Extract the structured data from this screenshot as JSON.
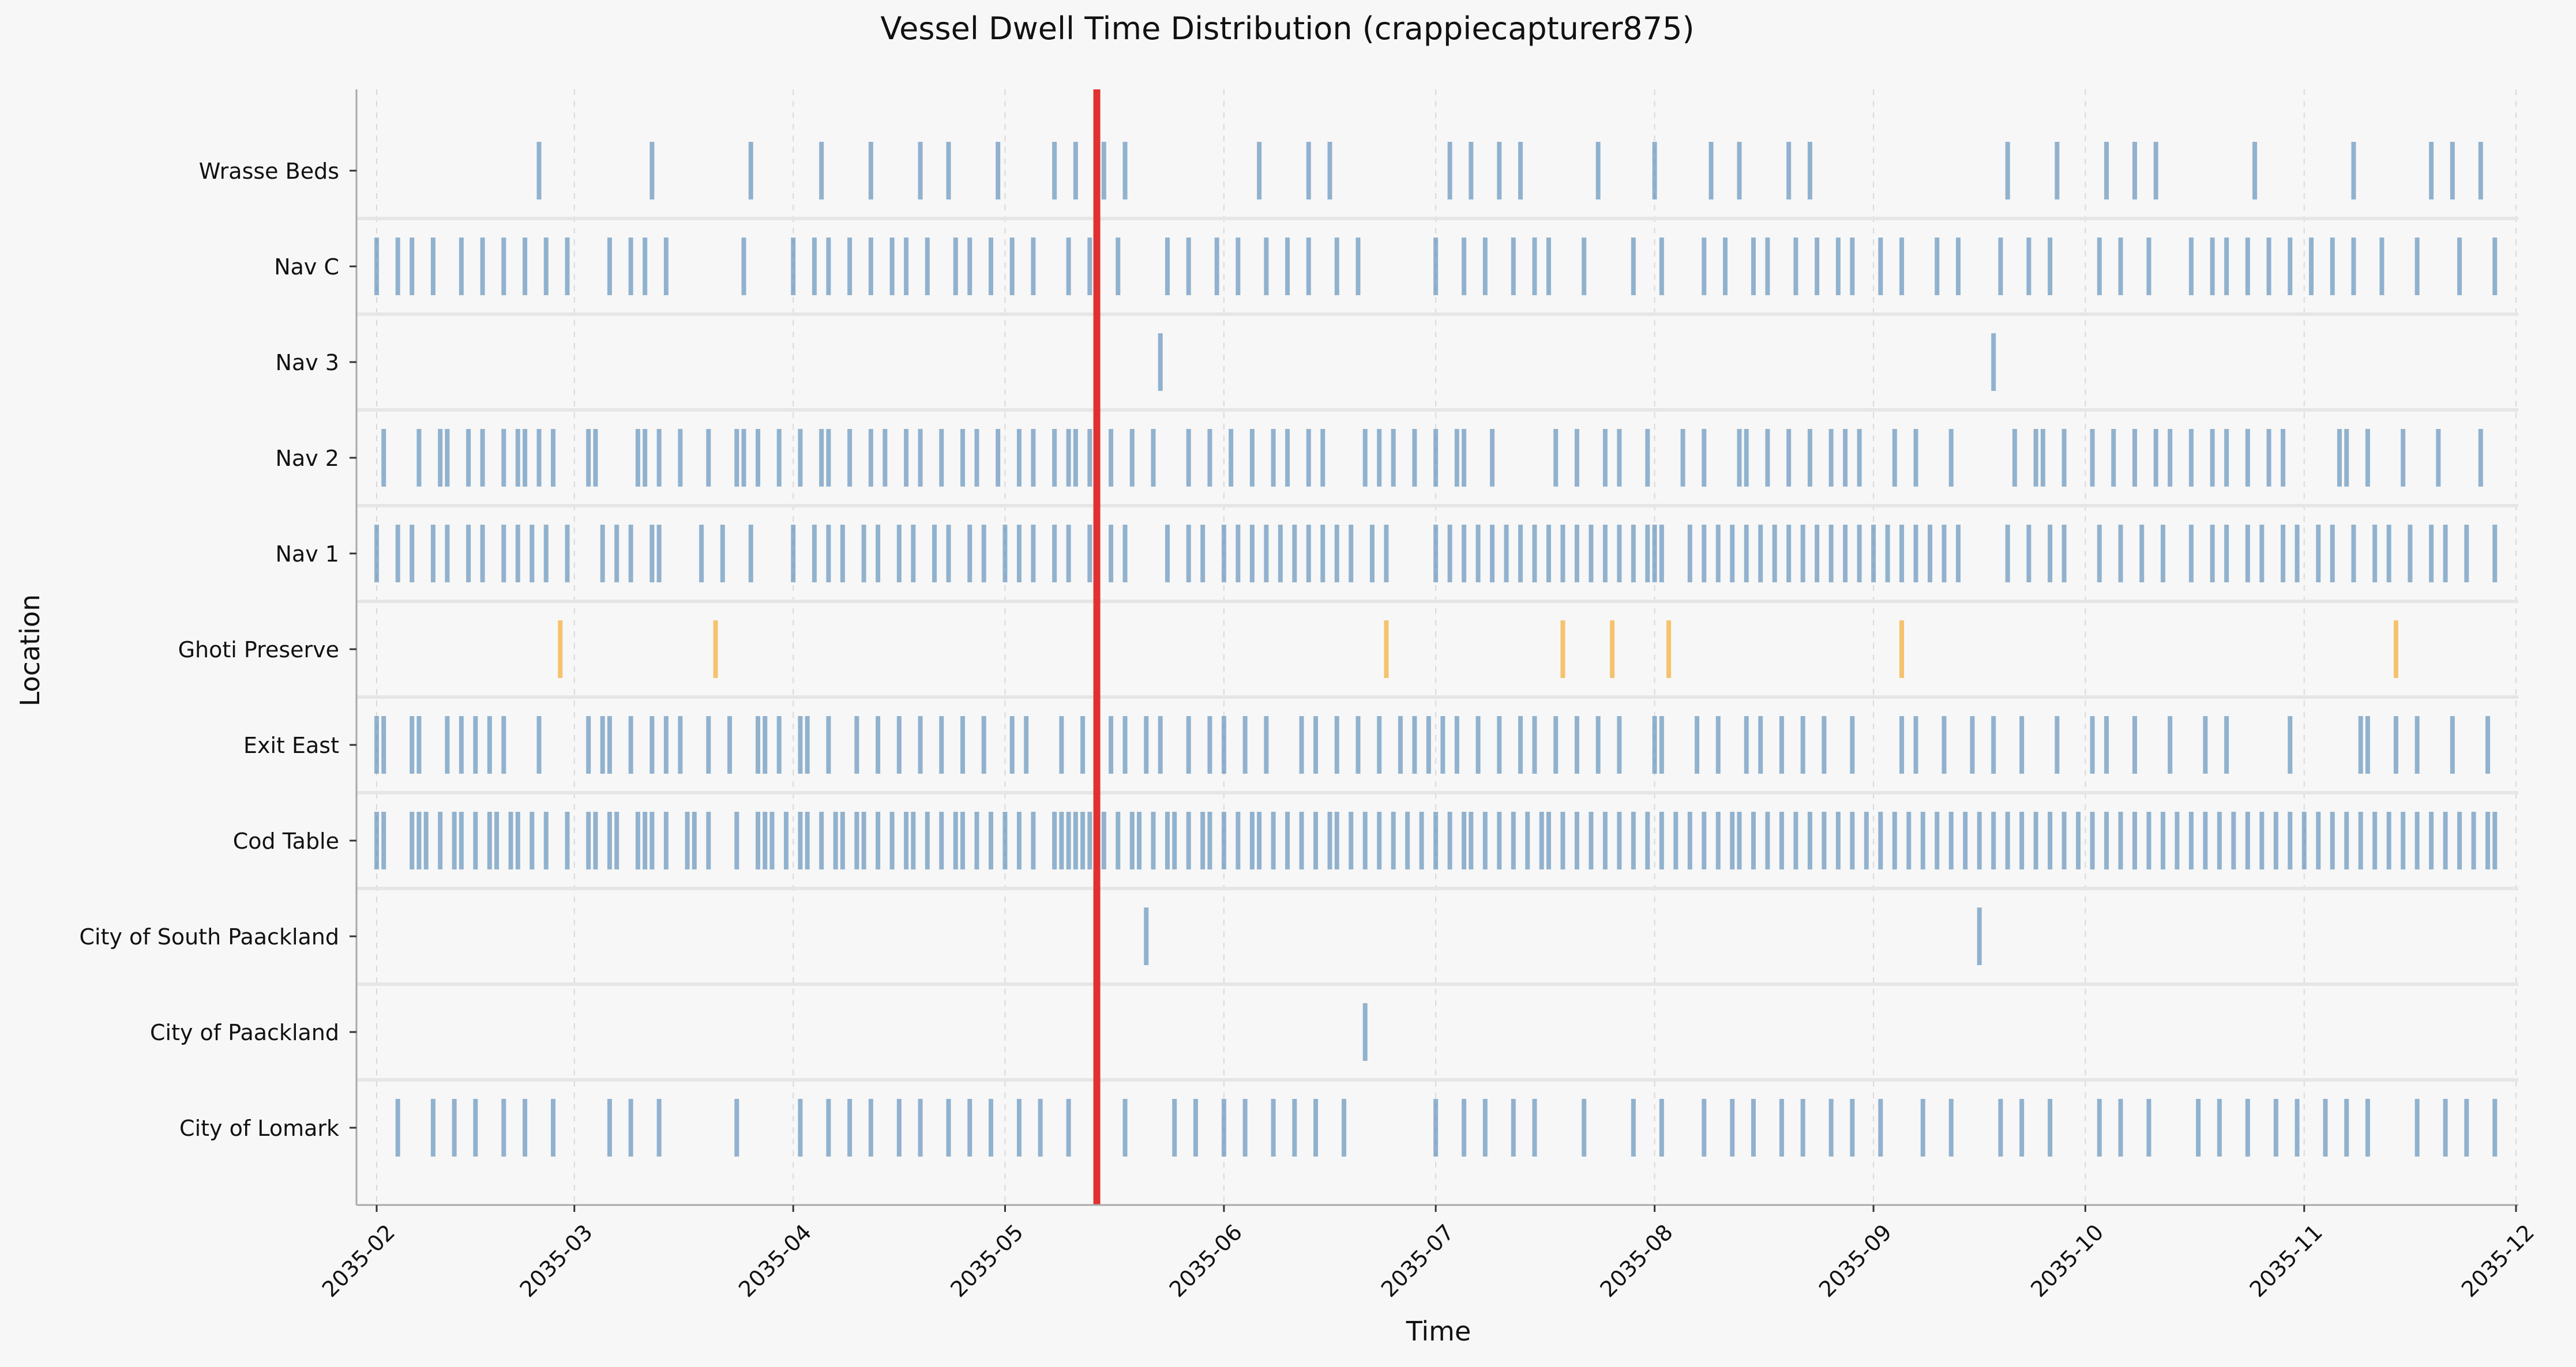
{
  "chart_data": {
    "type": "event-strip",
    "title": "Vessel Dwell Time Distribution (crappiecapturer875)",
    "xlabel": "Time",
    "ylabel": "Location",
    "xlim": [
      "2035-02-01",
      "2035-12-01"
    ],
    "x_tick_labels": [
      "2035-02",
      "2035-03",
      "2035-04",
      "2035-05",
      "2035-06",
      "2035-07",
      "2035-08",
      "2035-09",
      "2035-10",
      "2035-11",
      "2035-12"
    ],
    "x_ticks": [
      "2035-02-01",
      "2035-03-01",
      "2035-04-01",
      "2035-05-01",
      "2035-06-01",
      "2035-07-01",
      "2035-08-01",
      "2035-09-01",
      "2035-10-01",
      "2035-11-01",
      "2035-12-01"
    ],
    "categories": [
      "Wrasse Beds",
      "Nav C",
      "Nav 3",
      "Nav 2",
      "Nav 1",
      "Ghoti Preserve",
      "Exit East",
      "Cod Table",
      "City of South Paackland",
      "City of Paackland",
      "City of Lomark"
    ],
    "grid": "vertical dashed",
    "marker_line": {
      "date": "2035-05-14",
      "color": "#e03131"
    },
    "colors": {
      "default": "#5b8db8",
      "highlight": "#f5a623",
      "marker": "#e03131"
    },
    "series": [
      {
        "category": "Wrasse Beds",
        "color": "#5b8db8",
        "events": [
          "2035-02-24",
          "2035-03-12",
          "2035-03-26",
          "2035-04-05",
          "2035-04-12",
          "2035-04-19",
          "2035-04-23",
          "2035-04-30",
          "2035-05-08",
          "2035-05-11",
          "2035-05-15",
          "2035-05-18",
          "2035-06-06",
          "2035-06-13",
          "2035-06-16",
          "2035-07-03",
          "2035-07-06",
          "2035-07-10",
          "2035-07-13",
          "2035-07-24",
          "2035-08-01",
          "2035-08-09",
          "2035-08-13",
          "2035-08-20",
          "2035-08-23",
          "2035-09-20",
          "2035-09-27",
          "2035-10-04",
          "2035-10-08",
          "2035-10-11",
          "2035-10-25",
          "2035-11-08",
          "2035-11-19",
          "2035-11-22",
          "2035-11-26"
        ]
      },
      {
        "category": "Nav C",
        "color": "#5b8db8",
        "events": [
          "2035-02-01",
          "2035-02-04",
          "2035-02-06",
          "2035-02-09",
          "2035-02-13",
          "2035-02-16",
          "2035-02-19",
          "2035-02-22",
          "2035-02-25",
          "2035-02-28",
          "2035-03-06",
          "2035-03-09",
          "2035-03-11",
          "2035-03-14",
          "2035-03-25",
          "2035-04-01",
          "2035-04-04",
          "2035-04-06",
          "2035-04-09",
          "2035-04-12",
          "2035-04-15",
          "2035-04-17",
          "2035-04-20",
          "2035-04-24",
          "2035-04-26",
          "2035-04-29",
          "2035-05-02",
          "2035-05-05",
          "2035-05-10",
          "2035-05-13",
          "2035-05-17",
          "2035-05-24",
          "2035-05-27",
          "2035-05-31",
          "2035-06-03",
          "2035-06-07",
          "2035-06-10",
          "2035-06-13",
          "2035-06-17",
          "2035-06-20",
          "2035-07-01",
          "2035-07-05",
          "2035-07-08",
          "2035-07-12",
          "2035-07-15",
          "2035-07-17",
          "2035-07-22",
          "2035-07-29",
          "2035-08-02",
          "2035-08-08",
          "2035-08-11",
          "2035-08-15",
          "2035-08-17",
          "2035-08-21",
          "2035-08-24",
          "2035-08-27",
          "2035-08-29",
          "2035-09-02",
          "2035-09-05",
          "2035-09-10",
          "2035-09-13",
          "2035-09-19",
          "2035-09-23",
          "2035-09-26",
          "2035-10-03",
          "2035-10-06",
          "2035-10-10",
          "2035-10-16",
          "2035-10-19",
          "2035-10-21",
          "2035-10-24",
          "2035-10-27",
          "2035-10-30",
          "2035-11-02",
          "2035-11-05",
          "2035-11-08",
          "2035-11-12",
          "2035-11-17",
          "2035-11-23",
          "2035-11-28"
        ]
      },
      {
        "category": "Nav 3",
        "color": "#5b8db8",
        "events": [
          "2035-05-23",
          "2035-09-18"
        ]
      },
      {
        "category": "Nav 2",
        "color": "#5b8db8",
        "events": [
          "2035-02-02",
          "2035-02-07",
          "2035-02-10",
          "2035-02-11",
          "2035-02-14",
          "2035-02-16",
          "2035-02-19",
          "2035-02-21",
          "2035-02-22",
          "2035-02-24",
          "2035-02-26",
          "2035-03-03",
          "2035-03-04",
          "2035-03-10",
          "2035-03-11",
          "2035-03-13",
          "2035-03-16",
          "2035-03-20",
          "2035-03-24",
          "2035-03-25",
          "2035-03-27",
          "2035-03-30",
          "2035-04-02",
          "2035-04-05",
          "2035-04-06",
          "2035-04-09",
          "2035-04-12",
          "2035-04-14",
          "2035-04-17",
          "2035-04-19",
          "2035-04-22",
          "2035-04-25",
          "2035-04-27",
          "2035-04-30",
          "2035-05-03",
          "2035-05-05",
          "2035-05-08",
          "2035-05-10",
          "2035-05-11",
          "2035-05-13",
          "2035-05-16",
          "2035-05-19",
          "2035-05-22",
          "2035-05-27",
          "2035-05-30",
          "2035-06-02",
          "2035-06-05",
          "2035-06-08",
          "2035-06-10",
          "2035-06-13",
          "2035-06-15",
          "2035-06-21",
          "2035-06-23",
          "2035-06-25",
          "2035-06-28",
          "2035-07-01",
          "2035-07-04",
          "2035-07-05",
          "2035-07-09",
          "2035-07-18",
          "2035-07-21",
          "2035-07-25",
          "2035-07-27",
          "2035-07-31",
          "2035-08-05",
          "2035-08-08",
          "2035-08-13",
          "2035-08-14",
          "2035-08-17",
          "2035-08-20",
          "2035-08-23",
          "2035-08-26",
          "2035-08-28",
          "2035-08-30",
          "2035-09-04",
          "2035-09-07",
          "2035-09-12",
          "2035-09-21",
          "2035-09-24",
          "2035-09-25",
          "2035-09-28",
          "2035-10-02",
          "2035-10-05",
          "2035-10-08",
          "2035-10-11",
          "2035-10-13",
          "2035-10-16",
          "2035-10-19",
          "2035-10-21",
          "2035-10-24",
          "2035-10-27",
          "2035-10-29",
          "2035-11-06",
          "2035-11-07",
          "2035-11-10",
          "2035-11-15",
          "2035-11-20",
          "2035-11-26"
        ]
      },
      {
        "category": "Nav 1",
        "color": "#5b8db8",
        "events": [
          "2035-02-01",
          "2035-02-04",
          "2035-02-06",
          "2035-02-09",
          "2035-02-11",
          "2035-02-14",
          "2035-02-16",
          "2035-02-19",
          "2035-02-21",
          "2035-02-23",
          "2035-02-25",
          "2035-02-28",
          "2035-03-05",
          "2035-03-07",
          "2035-03-09",
          "2035-03-12",
          "2035-03-13",
          "2035-03-19",
          "2035-03-22",
          "2035-03-26",
          "2035-04-01",
          "2035-04-04",
          "2035-04-06",
          "2035-04-08",
          "2035-04-11",
          "2035-04-13",
          "2035-04-16",
          "2035-04-18",
          "2035-04-21",
          "2035-04-23",
          "2035-04-26",
          "2035-04-28",
          "2035-05-01",
          "2035-05-03",
          "2035-05-05",
          "2035-05-08",
          "2035-05-10",
          "2035-05-13",
          "2035-05-16",
          "2035-05-18",
          "2035-05-24",
          "2035-05-27",
          "2035-05-29",
          "2035-06-01",
          "2035-06-03",
          "2035-06-05",
          "2035-06-07",
          "2035-06-09",
          "2035-06-11",
          "2035-06-13",
          "2035-06-15",
          "2035-06-17",
          "2035-06-19",
          "2035-06-22",
          "2035-06-24",
          "2035-07-01",
          "2035-07-03",
          "2035-07-05",
          "2035-07-07",
          "2035-07-09",
          "2035-07-11",
          "2035-07-13",
          "2035-07-15",
          "2035-07-17",
          "2035-07-19",
          "2035-07-21",
          "2035-07-23",
          "2035-07-25",
          "2035-07-27",
          "2035-07-29",
          "2035-07-31",
          "2035-08-01",
          "2035-08-02",
          "2035-08-06",
          "2035-08-08",
          "2035-08-10",
          "2035-08-12",
          "2035-08-14",
          "2035-08-16",
          "2035-08-18",
          "2035-08-20",
          "2035-08-22",
          "2035-08-24",
          "2035-08-26",
          "2035-08-28",
          "2035-08-30",
          "2035-09-01",
          "2035-09-03",
          "2035-09-05",
          "2035-09-07",
          "2035-09-09",
          "2035-09-11",
          "2035-09-13",
          "2035-09-20",
          "2035-09-23",
          "2035-09-26",
          "2035-09-28",
          "2035-10-03",
          "2035-10-06",
          "2035-10-09",
          "2035-10-12",
          "2035-10-16",
          "2035-10-19",
          "2035-10-21",
          "2035-10-24",
          "2035-10-26",
          "2035-10-29",
          "2035-10-31",
          "2035-11-03",
          "2035-11-05",
          "2035-11-08",
          "2035-11-11",
          "2035-11-13",
          "2035-11-16",
          "2035-11-19",
          "2035-11-21",
          "2035-11-24",
          "2035-11-28"
        ]
      },
      {
        "category": "Ghoti Preserve",
        "color": "#f5a623",
        "events": [
          "2035-02-27",
          "2035-03-21",
          "2035-06-24",
          "2035-07-19",
          "2035-07-26",
          "2035-08-03",
          "2035-09-05",
          "2035-11-14"
        ]
      },
      {
        "category": "Exit East",
        "color": "#5b8db8",
        "events": [
          "2035-02-01",
          "2035-02-02",
          "2035-02-06",
          "2035-02-07",
          "2035-02-11",
          "2035-02-13",
          "2035-02-15",
          "2035-02-17",
          "2035-02-19",
          "2035-02-24",
          "2035-03-03",
          "2035-03-05",
          "2035-03-06",
          "2035-03-09",
          "2035-03-12",
          "2035-03-14",
          "2035-03-16",
          "2035-03-20",
          "2035-03-23",
          "2035-03-27",
          "2035-03-28",
          "2035-03-30",
          "2035-04-02",
          "2035-04-03",
          "2035-04-06",
          "2035-04-10",
          "2035-04-13",
          "2035-04-16",
          "2035-04-19",
          "2035-04-22",
          "2035-04-25",
          "2035-04-28",
          "2035-05-02",
          "2035-05-04",
          "2035-05-09",
          "2035-05-12",
          "2035-05-16",
          "2035-05-18",
          "2035-05-21",
          "2035-05-23",
          "2035-05-27",
          "2035-05-30",
          "2035-06-01",
          "2035-06-04",
          "2035-06-07",
          "2035-06-12",
          "2035-06-14",
          "2035-06-17",
          "2035-06-20",
          "2035-06-23",
          "2035-06-26",
          "2035-06-28",
          "2035-06-30",
          "2035-07-02",
          "2035-07-04",
          "2035-07-07",
          "2035-07-10",
          "2035-07-13",
          "2035-07-15",
          "2035-07-18",
          "2035-07-21",
          "2035-07-24",
          "2035-07-27",
          "2035-08-01",
          "2035-08-02",
          "2035-08-07",
          "2035-08-10",
          "2035-08-14",
          "2035-08-16",
          "2035-08-19",
          "2035-08-22",
          "2035-08-25",
          "2035-08-29",
          "2035-09-05",
          "2035-09-07",
          "2035-09-11",
          "2035-09-15",
          "2035-09-18",
          "2035-09-22",
          "2035-09-27",
          "2035-10-02",
          "2035-10-04",
          "2035-10-08",
          "2035-10-13",
          "2035-10-18",
          "2035-10-21",
          "2035-10-30",
          "2035-11-09",
          "2035-11-10",
          "2035-11-14",
          "2035-11-17",
          "2035-11-22",
          "2035-11-27"
        ]
      },
      {
        "category": "Cod Table",
        "color": "#5b8db8",
        "events": [
          "2035-02-01",
          "2035-02-02",
          "2035-02-06",
          "2035-02-07",
          "2035-02-08",
          "2035-02-10",
          "2035-02-12",
          "2035-02-13",
          "2035-02-15",
          "2035-02-17",
          "2035-02-18",
          "2035-02-20",
          "2035-02-21",
          "2035-02-23",
          "2035-02-25",
          "2035-02-28",
          "2035-03-03",
          "2035-03-04",
          "2035-03-06",
          "2035-03-07",
          "2035-03-10",
          "2035-03-11",
          "2035-03-12",
          "2035-03-14",
          "2035-03-17",
          "2035-03-18",
          "2035-03-20",
          "2035-03-24",
          "2035-03-27",
          "2035-03-28",
          "2035-03-29",
          "2035-03-31",
          "2035-04-02",
          "2035-04-03",
          "2035-04-05",
          "2035-04-07",
          "2035-04-08",
          "2035-04-10",
          "2035-04-11",
          "2035-04-13",
          "2035-04-15",
          "2035-04-17",
          "2035-04-18",
          "2035-04-20",
          "2035-04-22",
          "2035-04-24",
          "2035-04-25",
          "2035-04-27",
          "2035-04-29",
          "2035-05-01",
          "2035-05-03",
          "2035-05-05",
          "2035-05-08",
          "2035-05-09",
          "2035-05-10",
          "2035-05-11",
          "2035-05-12",
          "2035-05-13",
          "2035-05-15",
          "2035-05-17",
          "2035-05-19",
          "2035-05-20",
          "2035-05-22",
          "2035-05-24",
          "2035-05-25",
          "2035-05-27",
          "2035-05-29",
          "2035-05-30",
          "2035-06-01",
          "2035-06-03",
          "2035-06-05",
          "2035-06-06",
          "2035-06-08",
          "2035-06-10",
          "2035-06-12",
          "2035-06-14",
          "2035-06-16",
          "2035-06-17",
          "2035-06-19",
          "2035-06-21",
          "2035-06-23",
          "2035-06-25",
          "2035-06-27",
          "2035-06-29",
          "2035-07-01",
          "2035-07-03",
          "2035-07-05",
          "2035-07-06",
          "2035-07-08",
          "2035-07-10",
          "2035-07-12",
          "2035-07-14",
          "2035-07-16",
          "2035-07-17",
          "2035-07-19",
          "2035-07-21",
          "2035-07-23",
          "2035-07-25",
          "2035-07-27",
          "2035-07-29",
          "2035-07-31",
          "2035-08-02",
          "2035-08-04",
          "2035-08-06",
          "2035-08-08",
          "2035-08-10",
          "2035-08-12",
          "2035-08-13",
          "2035-08-15",
          "2035-08-17",
          "2035-08-19",
          "2035-08-21",
          "2035-08-23",
          "2035-08-25",
          "2035-08-27",
          "2035-08-29",
          "2035-08-31",
          "2035-09-02",
          "2035-09-04",
          "2035-09-06",
          "2035-09-08",
          "2035-09-10",
          "2035-09-12",
          "2035-09-14",
          "2035-09-16",
          "2035-09-18",
          "2035-09-20",
          "2035-09-22",
          "2035-09-24",
          "2035-09-26",
          "2035-09-28",
          "2035-09-30",
          "2035-10-02",
          "2035-10-04",
          "2035-10-06",
          "2035-10-08",
          "2035-10-10",
          "2035-10-12",
          "2035-10-14",
          "2035-10-16",
          "2035-10-18",
          "2035-10-20",
          "2035-10-22",
          "2035-10-24",
          "2035-10-26",
          "2035-10-28",
          "2035-10-30",
          "2035-11-01",
          "2035-11-03",
          "2035-11-05",
          "2035-11-07",
          "2035-11-09",
          "2035-11-11",
          "2035-11-13",
          "2035-11-15",
          "2035-11-17",
          "2035-11-19",
          "2035-11-21",
          "2035-11-23",
          "2035-11-25",
          "2035-11-27",
          "2035-11-28"
        ]
      },
      {
        "category": "City of South Paackland",
        "color": "#5b8db8",
        "events": [
          "2035-05-21",
          "2035-09-16"
        ]
      },
      {
        "category": "City of Paackland",
        "color": "#5b8db8",
        "events": [
          "2035-06-21"
        ]
      },
      {
        "category": "City of Lomark",
        "color": "#5b8db8",
        "events": [
          "2035-02-04",
          "2035-02-09",
          "2035-02-12",
          "2035-02-15",
          "2035-02-19",
          "2035-02-22",
          "2035-02-26",
          "2035-03-06",
          "2035-03-09",
          "2035-03-13",
          "2035-03-24",
          "2035-04-02",
          "2035-04-06",
          "2035-04-09",
          "2035-04-12",
          "2035-04-16",
          "2035-04-19",
          "2035-04-23",
          "2035-04-26",
          "2035-04-29",
          "2035-05-03",
          "2035-05-06",
          "2035-05-10",
          "2035-05-14",
          "2035-05-18",
          "2035-05-25",
          "2035-05-28",
          "2035-06-01",
          "2035-06-04",
          "2035-06-08",
          "2035-06-11",
          "2035-06-14",
          "2035-06-18",
          "2035-07-01",
          "2035-07-05",
          "2035-07-08",
          "2035-07-12",
          "2035-07-15",
          "2035-07-22",
          "2035-07-29",
          "2035-08-02",
          "2035-08-08",
          "2035-08-12",
          "2035-08-15",
          "2035-08-19",
          "2035-08-22",
          "2035-08-26",
          "2035-08-29",
          "2035-09-02",
          "2035-09-08",
          "2035-09-12",
          "2035-09-19",
          "2035-09-22",
          "2035-09-26",
          "2035-10-03",
          "2035-10-06",
          "2035-10-10",
          "2035-10-17",
          "2035-10-20",
          "2035-10-24",
          "2035-10-28",
          "2035-10-31",
          "2035-11-04",
          "2035-11-07",
          "2035-11-10",
          "2035-11-17",
          "2035-11-21",
          "2035-11-24",
          "2035-11-28"
        ]
      }
    ]
  }
}
